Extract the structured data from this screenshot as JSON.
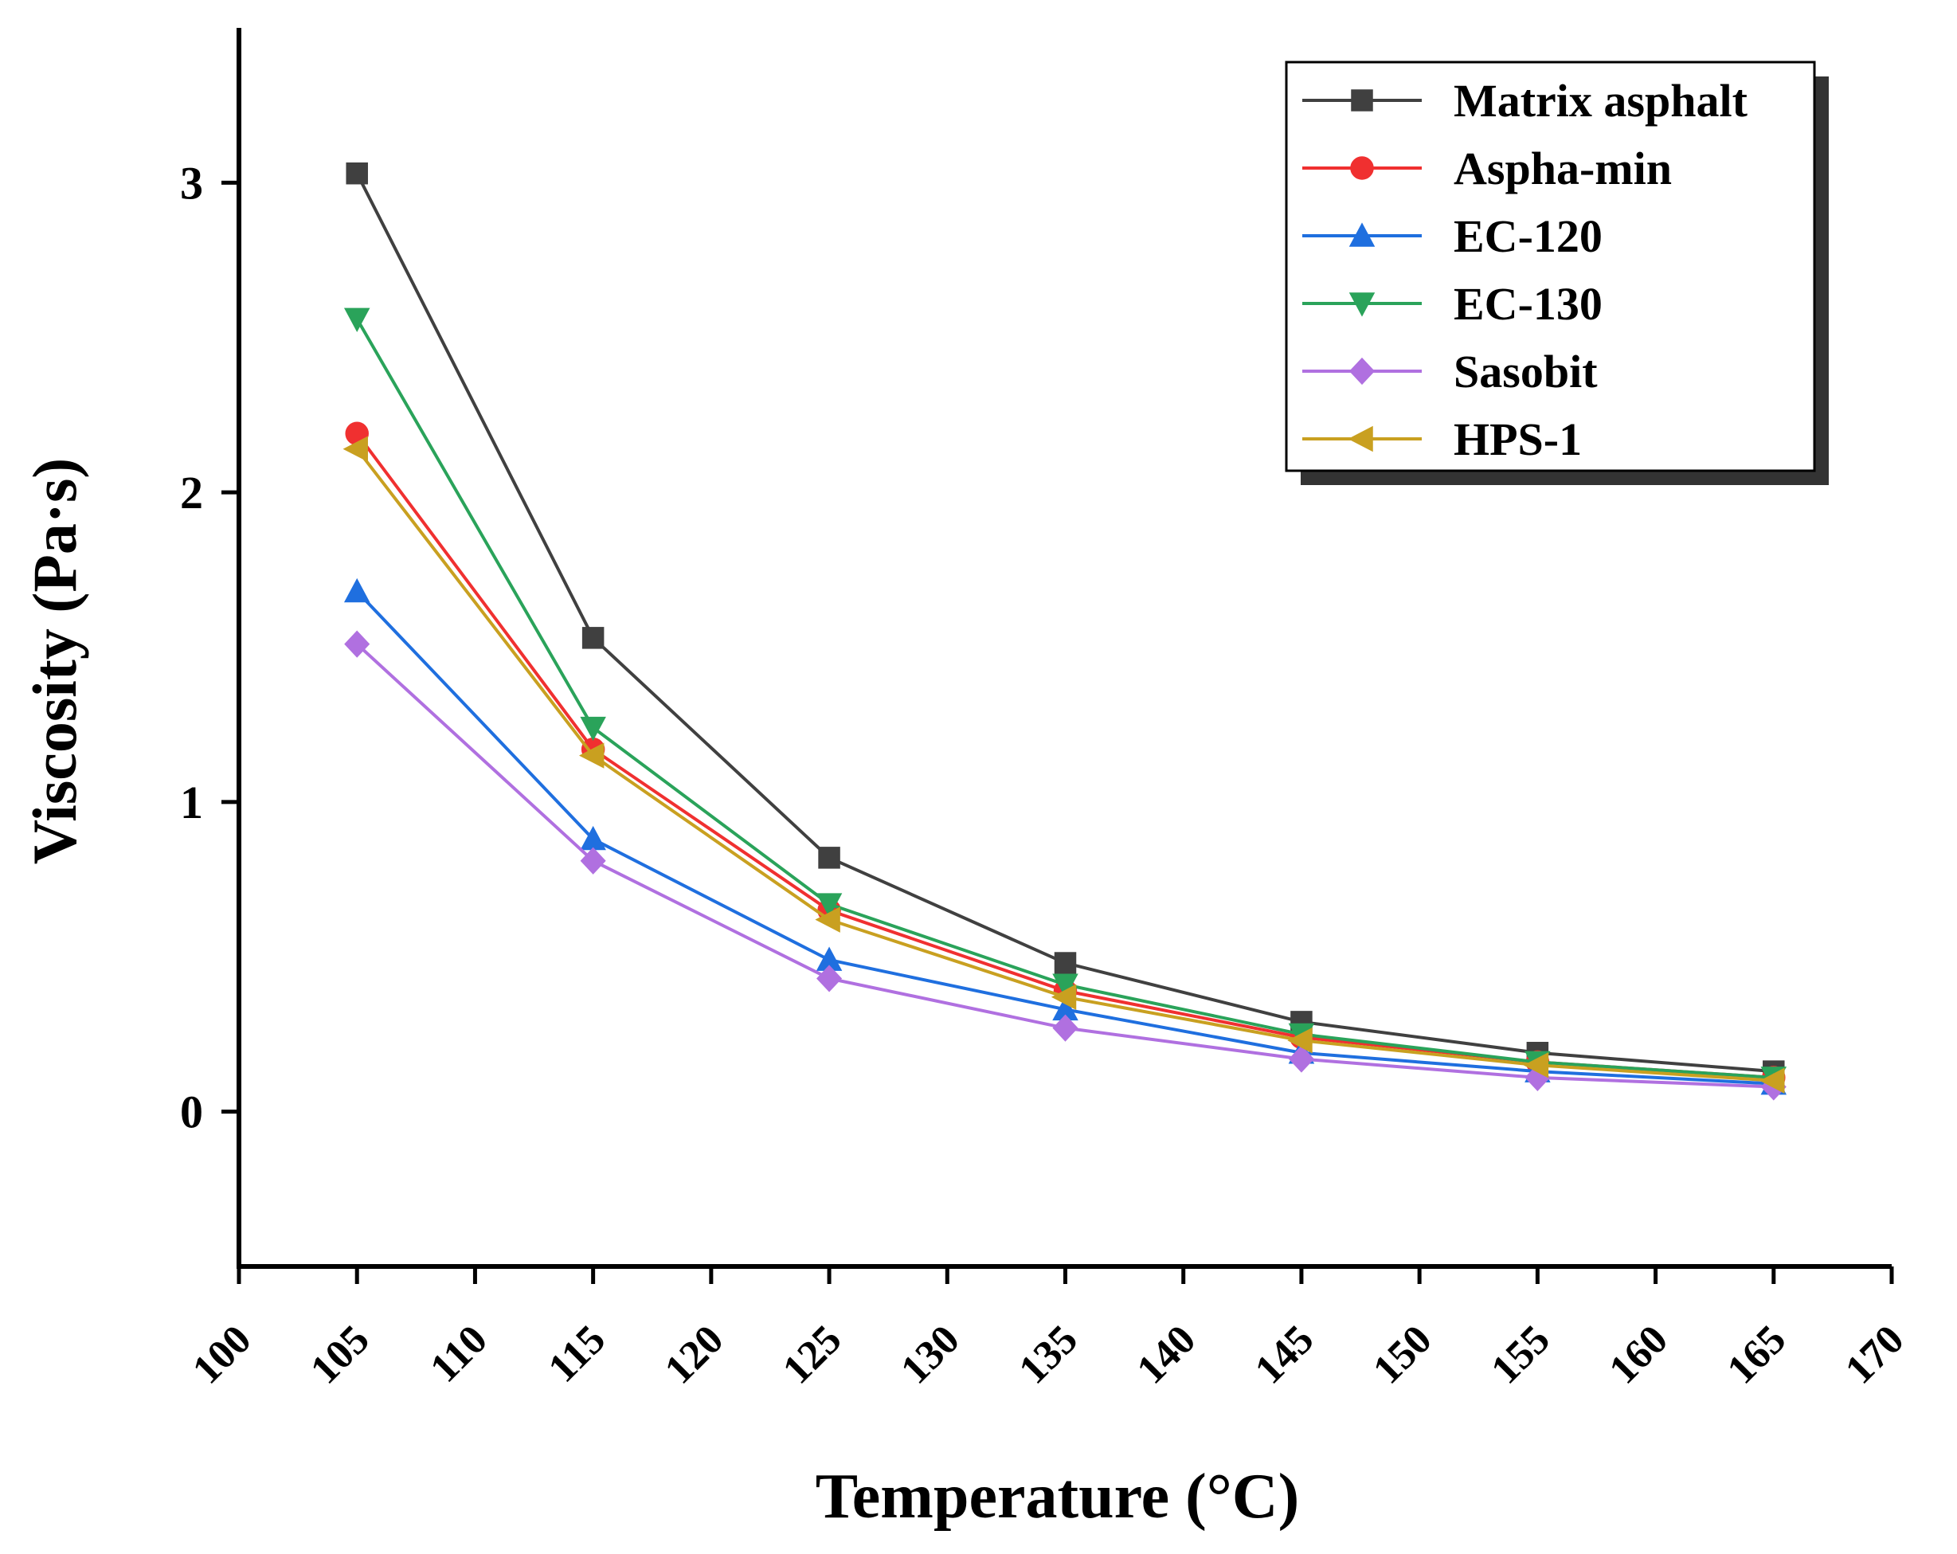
{
  "chart_data": {
    "type": "line",
    "title": "",
    "xlabel": "Temperature (°C)",
    "ylabel": "Viscosity (Pa·s)",
    "xlim": [
      100,
      170
    ],
    "ylim": [
      -0.5,
      3.5
    ],
    "x_ticks": [
      100,
      105,
      110,
      115,
      120,
      125,
      130,
      135,
      140,
      145,
      150,
      155,
      160,
      165,
      170
    ],
    "x_tick_labels": [
      "100",
      "105",
      "110",
      "115",
      "120",
      "125",
      "130",
      "135",
      "140",
      "145",
      "150",
      "155",
      "160",
      "165",
      "170"
    ],
    "y_ticks": [
      0,
      1,
      2,
      3
    ],
    "y_tick_labels": [
      "0",
      "1",
      "2",
      "3"
    ],
    "grid": false,
    "legend_position": "top-right",
    "x": [
      105,
      115,
      125,
      135,
      145,
      155,
      165
    ],
    "series": [
      {
        "name": "Matrix asphalt",
        "color": "#404040",
        "marker": "square",
        "values": [
          3.03,
          1.53,
          0.82,
          0.48,
          0.29,
          0.19,
          0.13
        ]
      },
      {
        "name": "Aspha-min",
        "color": "#f03030",
        "marker": "circle",
        "values": [
          2.19,
          1.17,
          0.65,
          0.39,
          0.24,
          0.16,
          0.11
        ]
      },
      {
        "name": "EC-120",
        "color": "#1f6fdf",
        "marker": "triangle-up",
        "values": [
          1.68,
          0.88,
          0.49,
          0.33,
          0.19,
          0.13,
          0.09
        ]
      },
      {
        "name": "EC-130",
        "color": "#2aa35a",
        "marker": "triangle-down",
        "values": [
          2.56,
          1.24,
          0.67,
          0.41,
          0.25,
          0.16,
          0.11
        ]
      },
      {
        "name": "Sasobit",
        "color": "#b070e0",
        "marker": "diamond",
        "values": [
          1.51,
          0.81,
          0.43,
          0.27,
          0.17,
          0.11,
          0.08
        ]
      },
      {
        "name": "HPS-1",
        "color": "#c9a020",
        "marker": "triangle-left",
        "values": [
          2.14,
          1.15,
          0.62,
          0.37,
          0.23,
          0.15,
          0.1
        ]
      }
    ]
  }
}
